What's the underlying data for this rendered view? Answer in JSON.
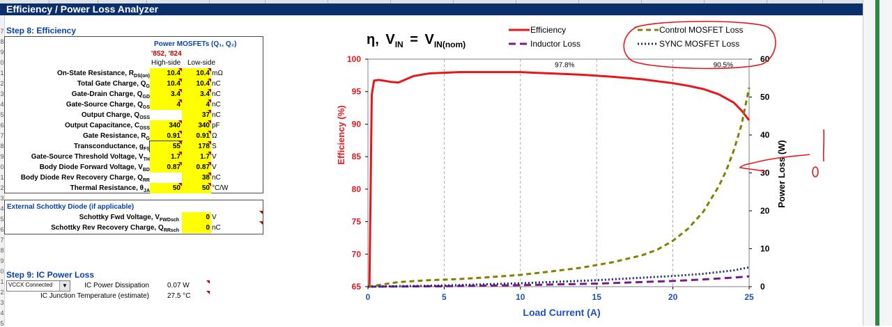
{
  "app": {
    "title": "Efficiency / Power Loss Analyzer"
  },
  "step8": {
    "title": "Step 8: Efficiency",
    "mosfet_title": "Power MOSFETs (Q₁, Q₂)",
    "parts": "'852, '824",
    "col_high": "High-side",
    "col_low": "Low-side",
    "rows": [
      {
        "label": "On-State Resistance, R",
        "sub": "DS(on)",
        "high": "10.4",
        "low": "10.4",
        "unit": "mΩ"
      },
      {
        "label": "Total Gate Charge, Q",
        "sub": "G",
        "high": "10.4",
        "low": "10.4",
        "unit": "nC"
      },
      {
        "label": "Gate-Drain Charge, Q",
        "sub": "GD",
        "high": "3.4",
        "low": "3.4",
        "unit": "nC"
      },
      {
        "label": "Gate-Source Charge, Q",
        "sub": "GS",
        "high": "4",
        "low": "4",
        "unit": "nC"
      },
      {
        "label": "Output Charge, Q",
        "sub": "OSS",
        "high": "",
        "low": "37",
        "unit": "nC"
      },
      {
        "label": "Output Capacitance, C",
        "sub": "OSS",
        "high": "340",
        "low": "340",
        "unit": "pF"
      },
      {
        "label": "Gate Resistance, R",
        "sub": "G",
        "high": "0.91",
        "low": "0.91",
        "unit": "Ω"
      },
      {
        "label": "Transconductance, g",
        "sub": "FS",
        "high": "55",
        "low": "178",
        "unit": "S"
      },
      {
        "label": "Gate-Source Threshold Voltage, V",
        "sub": "TH",
        "high": "1.7",
        "low": "1.7",
        "unit": "V"
      },
      {
        "label": "Body Diode Forward Voltage, V",
        "sub": "BD",
        "high": "0.87",
        "low": "0.87",
        "unit": "V"
      },
      {
        "label": "Body Diode Rev Recovery Charge, Q",
        "sub": "RR",
        "high": "",
        "low": "38",
        "unit": "nC"
      },
      {
        "label": "Thermal Resistance, θ",
        "sub": "JA",
        "high": "50",
        "low": "50",
        "unit": "°C/W"
      }
    ]
  },
  "schottky": {
    "title": "External Schottky Diode (if applicable)",
    "rows": [
      {
        "label": "Schottky Fwd Voltage, V",
        "sub": "FWDsch",
        "value": "0",
        "unit": "V"
      },
      {
        "label": "Schottky Rev Recovery Charge, Q",
        "sub": "RRsch",
        "value": "0",
        "unit": "nC"
      }
    ]
  },
  "step9": {
    "title": "Step 9: IC Power Loss",
    "dropdown_value": "VCCX Connected",
    "rows": [
      {
        "label": "IC Power Dissipation",
        "value": "0.07 W"
      },
      {
        "label": "IC Junction Temperature (estimate)",
        "value": "27.5 °C"
      }
    ]
  },
  "row_numbers": [
    "7",
    "8",
    "9",
    "0",
    "1",
    "2",
    "3",
    "4",
    "5",
    "6",
    "7",
    "8",
    "9",
    "0",
    "1",
    "2",
    "3",
    "4",
    "5",
    "6",
    "7",
    "8",
    "9",
    "0",
    "1",
    "2",
    "3",
    "4",
    "5"
  ],
  "chart_data": {
    "type": "line",
    "title_parts": {
      "eta": "η,",
      "v1": "V",
      "s1": "IN",
      "eq": "=",
      "v2": "V",
      "s2": "IN(nom)"
    },
    "xlabel": "Load Current (A)",
    "ylabel": "Efficiency (%)",
    "y2label": "Power Loss (W)",
    "xlim": [
      0,
      25
    ],
    "ylim": [
      65,
      100
    ],
    "y2lim": [
      0,
      60
    ],
    "xticks": [
      0,
      5,
      10,
      15,
      20,
      25
    ],
    "yticks": [
      65,
      70,
      75,
      80,
      85,
      90,
      95,
      100
    ],
    "y2ticks": [
      0,
      10,
      20,
      30,
      40,
      50,
      60
    ],
    "grid": "vertical dashed",
    "legend_position": "top",
    "annotations": [
      {
        "text": "97.8%",
        "x": 12.9,
        "y": 99.2
      },
      {
        "text": "90.5%",
        "x": 23.3,
        "y": 99.2
      }
    ],
    "series": [
      {
        "name": "Efficiency",
        "axis": "left",
        "color": "#e8161b",
        "dash": "solid",
        "x": [
          0.1,
          0.25,
          0.4,
          0.7,
          1,
          1.5,
          2,
          3,
          4,
          5,
          6,
          8,
          10,
          12,
          14,
          16,
          18,
          20,
          21,
          22,
          23,
          24,
          24.5,
          25
        ],
        "y": [
          65,
          94.5,
          96.7,
          96.8,
          96.7,
          96.5,
          96.4,
          97.4,
          97.8,
          97.9,
          98.0,
          98.0,
          98.0,
          97.8,
          97.6,
          97.3,
          96.9,
          96.3,
          95.9,
          95.4,
          94.6,
          93.3,
          92.1,
          90.6
        ]
      },
      {
        "name": "Inductor Loss",
        "axis": "right",
        "color": "#7a1a8c",
        "dash": "longdash",
        "x": [
          0,
          5,
          10,
          15,
          20,
          22,
          24,
          25
        ],
        "y": [
          0,
          0.1,
          0.4,
          0.8,
          1.5,
          1.9,
          2.4,
          2.7
        ]
      },
      {
        "name": "Control MOSFET Loss",
        "axis": "right",
        "color": "#808000",
        "dash": "dash",
        "x": [
          0,
          1,
          2,
          4,
          6,
          8,
          10,
          12,
          14,
          16,
          18,
          19,
          20,
          21,
          22,
          23,
          23.5,
          24,
          24.5,
          25
        ],
        "y": [
          0,
          0.6,
          1.2,
          1.7,
          2.0,
          2.5,
          3.1,
          4.0,
          5.0,
          6.4,
          8.3,
          9.8,
          12.1,
          15.3,
          19.8,
          26.4,
          30.6,
          36.0,
          42.7,
          52.5
        ]
      },
      {
        "name": "SYNC MOSFET Loss",
        "axis": "right",
        "color": "#1f2a6a",
        "dash": "dot",
        "x": [
          0,
          5,
          10,
          15,
          20,
          22,
          24,
          25
        ],
        "y": [
          0,
          0.3,
          0.9,
          1.7,
          2.8,
          3.4,
          4.3,
          5.1
        ]
      }
    ]
  }
}
